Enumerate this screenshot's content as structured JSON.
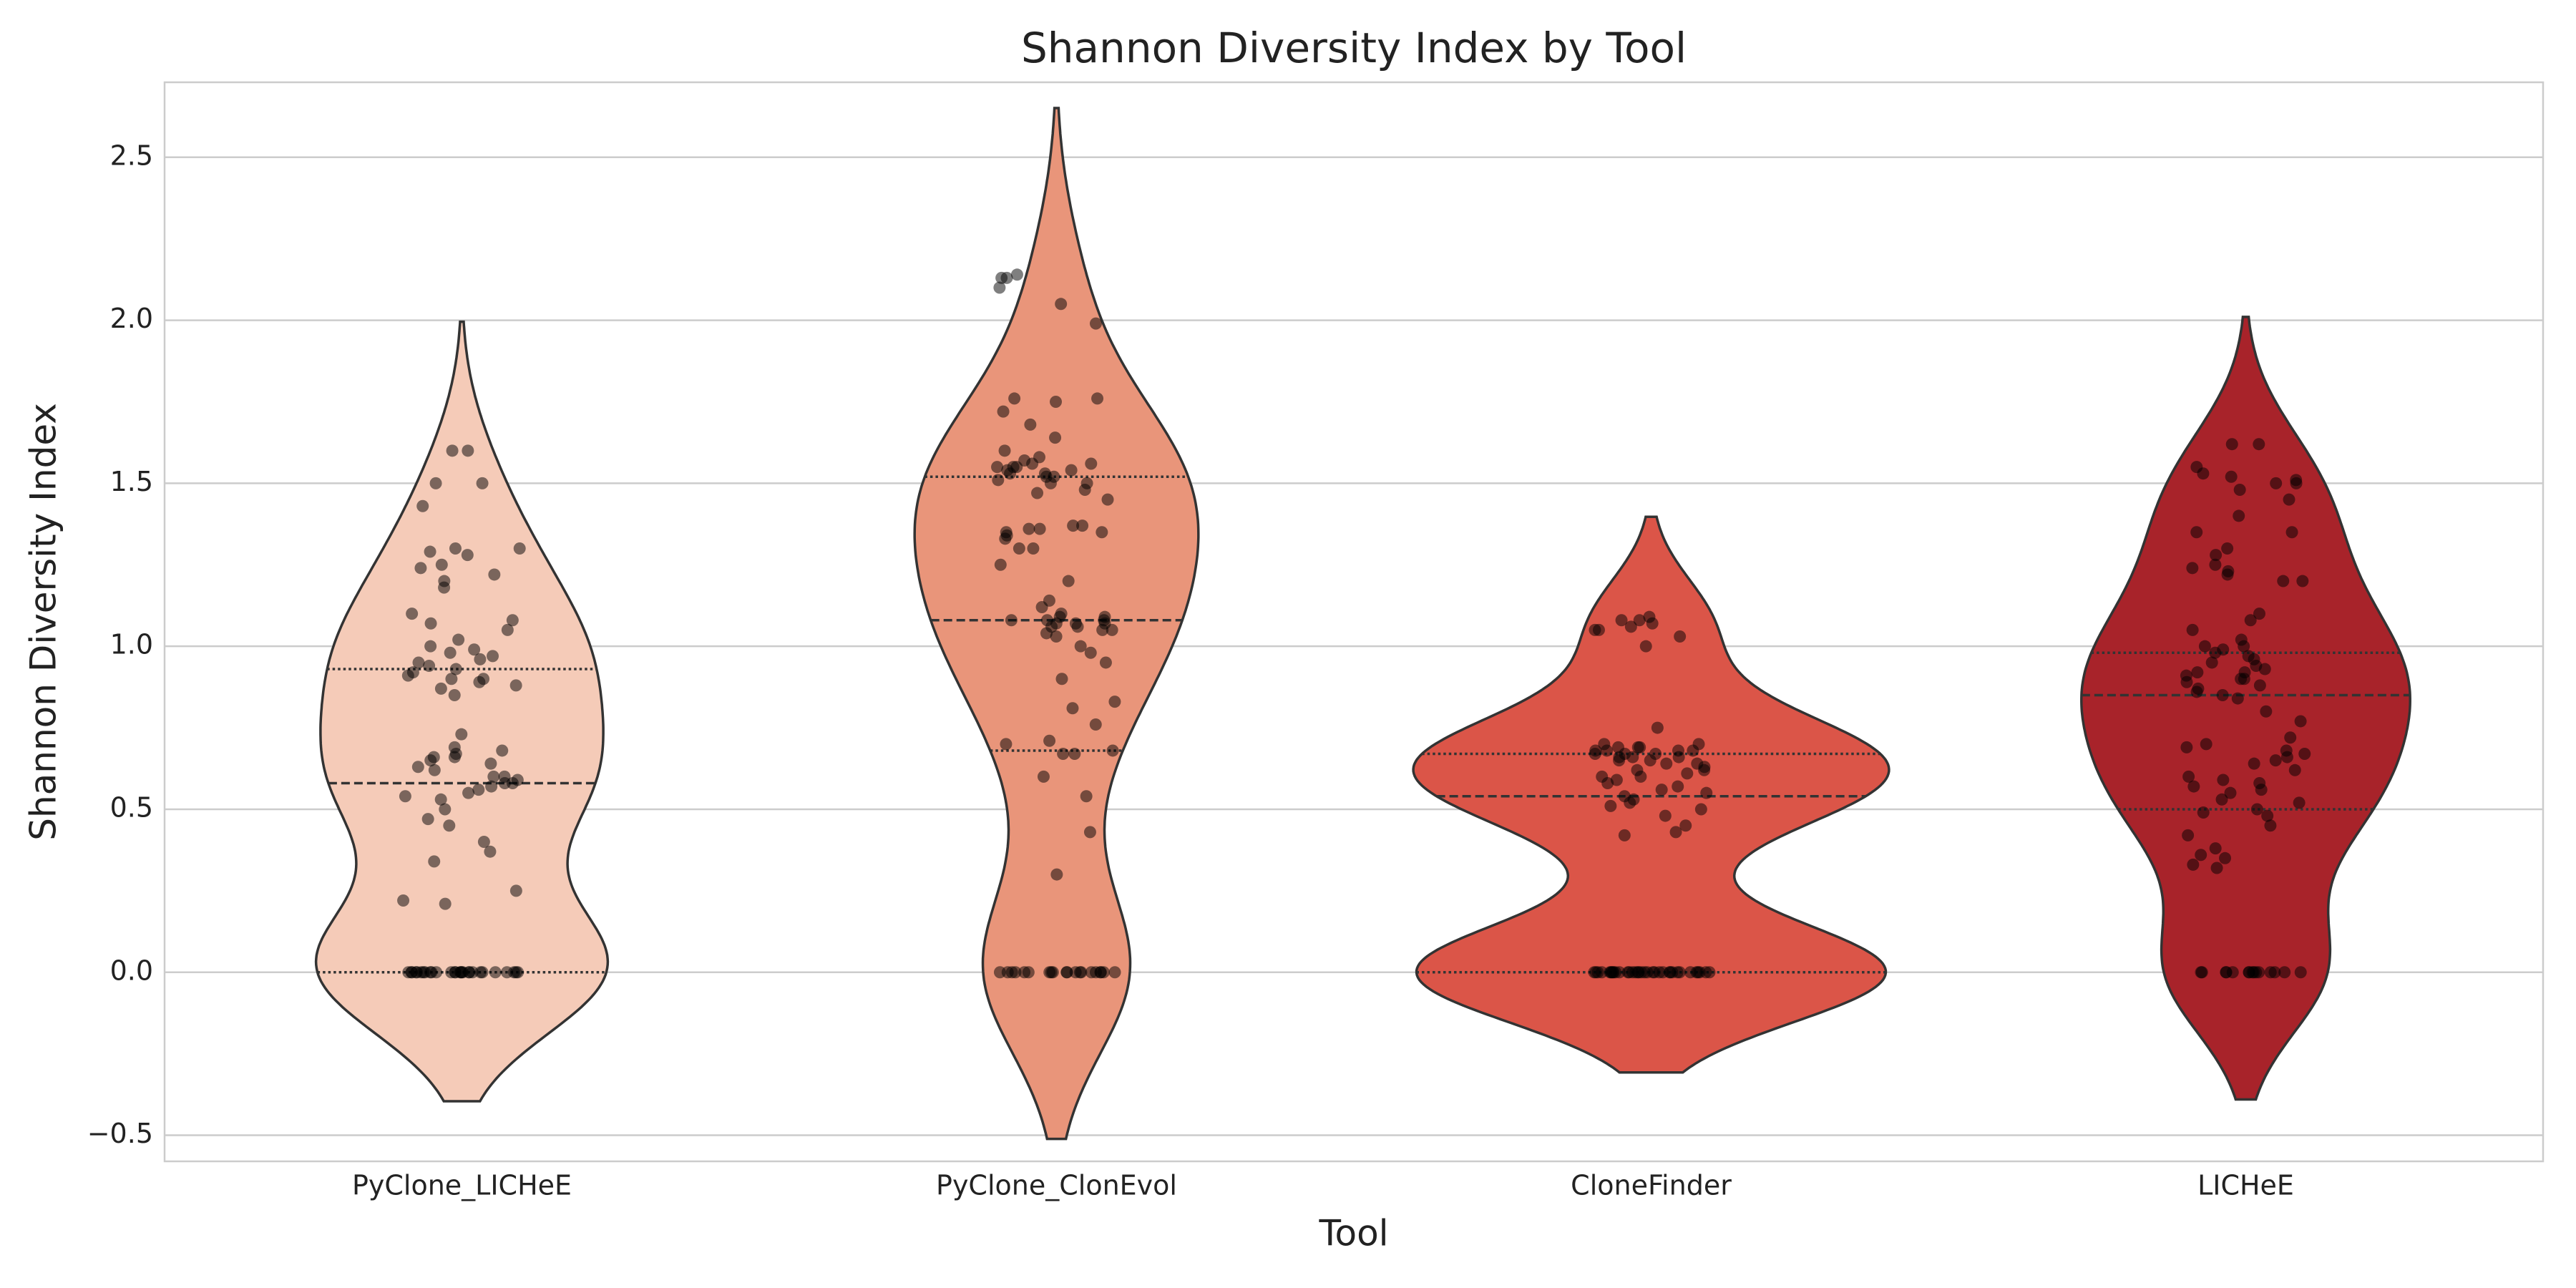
{
  "chart_data": {
    "type": "violin",
    "title": "Shannon Diversity Index by Tool",
    "xlabel": "Tool",
    "ylabel": "Shannon Diversity Index",
    "categories": [
      "PyClone_LICHeE",
      "PyClone_ClonEvol",
      "CloneFinder",
      "LICHeE"
    ],
    "colors": [
      "#f5cbb8",
      "#e9957a",
      "#db5548",
      "#a8232a"
    ],
    "values": [
      [
        0,
        0,
        0,
        0,
        0,
        0,
        0,
        0,
        0,
        0,
        0,
        0,
        0,
        0,
        0,
        0,
        0,
        0,
        0,
        0,
        0,
        0,
        0,
        0,
        0,
        0,
        0,
        0,
        1.6,
        1.6,
        1.5,
        1.5,
        1.43,
        1.3,
        1.3,
        1.29,
        1.28,
        1.25,
        1.24,
        1.22,
        1.2,
        1.18,
        1.1,
        1.08,
        1.07,
        1.05,
        1.02,
        1.0,
        0.99,
        0.98,
        0.97,
        0.96,
        0.95,
        0.94,
        0.93,
        0.92,
        0.91,
        0.9,
        0.9,
        0.89,
        0.88,
        0.87,
        0.85,
        0.73,
        0.69,
        0.68,
        0.67,
        0.66,
        0.66,
        0.65,
        0.64,
        0.63,
        0.62,
        0.6,
        0.6,
        0.59,
        0.58,
        0.58,
        0.57,
        0.56,
        0.55,
        0.54,
        0.53,
        0.5,
        0.47,
        0.45,
        0.4,
        0.37,
        0.34,
        0.25,
        0.22,
        0.21
      ],
      [
        0,
        0,
        0,
        0,
        0,
        0,
        0,
        0,
        0,
        0,
        0,
        0,
        0,
        0,
        0,
        0,
        0,
        0,
        0,
        0,
        2.14,
        2.13,
        2.13,
        2.1,
        2.05,
        1.99,
        1.76,
        1.76,
        1.75,
        1.72,
        1.68,
        1.64,
        1.6,
        1.58,
        1.57,
        1.56,
        1.56,
        1.55,
        1.55,
        1.55,
        1.54,
        1.54,
        1.53,
        1.53,
        1.52,
        1.52,
        1.51,
        1.5,
        1.5,
        1.48,
        1.47,
        1.45,
        1.37,
        1.37,
        1.36,
        1.36,
        1.35,
        1.35,
        1.34,
        1.33,
        1.3,
        1.3,
        1.25,
        1.2,
        1.14,
        1.12,
        1.1,
        1.09,
        1.09,
        1.08,
        1.08,
        1.08,
        1.07,
        1.07,
        1.07,
        1.06,
        1.06,
        1.05,
        1.05,
        1.04,
        1.03,
        1.0,
        0.98,
        0.95,
        0.9,
        0.83,
        0.81,
        0.76,
        0.71,
        0.7,
        0.68,
        0.67,
        0.67,
        0.6,
        0.54,
        0.43,
        0.3
      ],
      [
        0,
        0,
        0,
        0,
        0,
        0,
        0,
        0,
        0,
        0,
        0,
        0,
        0,
        0,
        0,
        0,
        0,
        0,
        0,
        0,
        0,
        0,
        0,
        0,
        0,
        0,
        0,
        0,
        0,
        0,
        0,
        0,
        0,
        0,
        0,
        1.09,
        1.08,
        1.08,
        1.07,
        1.06,
        1.05,
        1.05,
        1.03,
        1.0,
        0.75,
        0.7,
        0.7,
        0.69,
        0.69,
        0.69,
        0.68,
        0.68,
        0.68,
        0.68,
        0.67,
        0.67,
        0.67,
        0.66,
        0.66,
        0.66,
        0.65,
        0.65,
        0.64,
        0.64,
        0.63,
        0.62,
        0.62,
        0.61,
        0.6,
        0.6,
        0.59,
        0.58,
        0.57,
        0.56,
        0.55,
        0.54,
        0.53,
        0.52,
        0.51,
        0.5,
        0.48,
        0.45,
        0.43,
        0.42
      ],
      [
        0,
        0,
        0,
        0,
        0,
        0,
        0,
        0,
        0,
        0,
        0,
        0,
        0,
        0,
        0,
        1.62,
        1.62,
        1.55,
        1.53,
        1.52,
        1.51,
        1.5,
        1.5,
        1.48,
        1.45,
        1.4,
        1.35,
        1.35,
        1.3,
        1.28,
        1.25,
        1.24,
        1.23,
        1.22,
        1.2,
        1.2,
        1.1,
        1.08,
        1.05,
        1.02,
        1.0,
        1.0,
        0.99,
        0.98,
        0.97,
        0.96,
        0.95,
        0.94,
        0.93,
        0.92,
        0.92,
        0.91,
        0.9,
        0.9,
        0.89,
        0.88,
        0.87,
        0.86,
        0.85,
        0.84,
        0.8,
        0.77,
        0.72,
        0.7,
        0.69,
        0.68,
        0.67,
        0.66,
        0.65,
        0.64,
        0.62,
        0.6,
        0.59,
        0.58,
        0.57,
        0.56,
        0.55,
        0.53,
        0.52,
        0.5,
        0.49,
        0.48,
        0.45,
        0.42,
        0.38,
        0.36,
        0.35,
        0.33,
        0.32
      ]
    ],
    "quartiles": [
      [
        0,
        0.58,
        0.93
      ],
      [
        0.68,
        1.08,
        1.52
      ],
      [
        0,
        0.54,
        0.67
      ],
      [
        0.5,
        0.85,
        0.98
      ]
    ],
    "ylim": [
      -0.58,
      2.73
    ],
    "yticks": [
      {
        "value": -0.5,
        "label": "−0.5"
      },
      {
        "value": 0,
        "label": "0.0"
      },
      0.5,
      {
        "value": 1,
        "label": "1.0"
      },
      1.5,
      {
        "value": 2,
        "label": "2.0"
      },
      2.5
    ],
    "grid": true
  }
}
